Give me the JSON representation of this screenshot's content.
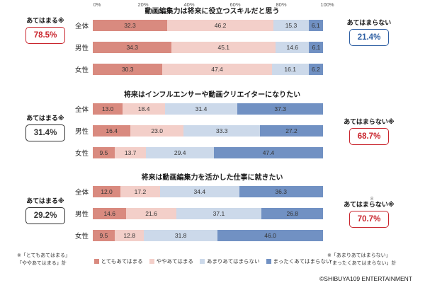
{
  "axis": {
    "ticks": [
      "0%",
      "20%",
      "40%",
      "60%",
      "80%",
      "100%"
    ]
  },
  "legend": [
    {
      "key": "totemo-atehamaru",
      "label": "とてもあてはまる",
      "color": "#d98a7f"
    },
    {
      "key": "yaya-atehamaru",
      "label": "ややあてはまる",
      "color": "#f3cfc9"
    },
    {
      "key": "amari-atehamaranai",
      "label": "あまりあてはまらない",
      "color": "#ccd9ea"
    },
    {
      "key": "mattaku-atehamaranai",
      "label": "まったくあてはまらない",
      "color": "#7191c3"
    }
  ],
  "chart_data": [
    {
      "type": "bar",
      "title": "動画編集力は将来に役立つスキルだと思う",
      "orientation": "horizontal-stacked",
      "xlim": [
        0,
        100
      ],
      "categories": [
        "全体",
        "男性",
        "女性"
      ],
      "rows": [
        {
          "label": "全体",
          "values": [
            32.3,
            46.2,
            15.3,
            6.1
          ]
        },
        {
          "label": "男性",
          "values": [
            34.3,
            45.1,
            14.6,
            6.1
          ]
        },
        {
          "label": "女性",
          "values": [
            30.3,
            47.4,
            16.1,
            6.2
          ]
        }
      ],
      "left_callout": {
        "label": "あてはまる※",
        "value": "78.5%",
        "color": "#c9252d"
      },
      "right_callout": {
        "label": "あてはまらない",
        "value": "21.4%",
        "color": "#2e5fa3"
      }
    },
    {
      "type": "bar",
      "title": "将来はインフルエンサーや動画クリエイターになりたい",
      "orientation": "horizontal-stacked",
      "xlim": [
        0,
        100
      ],
      "categories": [
        "全体",
        "男性",
        "女性"
      ],
      "rows": [
        {
          "label": "全体",
          "values": [
            13.0,
            18.4,
            31.4,
            37.3
          ]
        },
        {
          "label": "男性",
          "values": [
            16.4,
            23.0,
            33.3,
            27.2
          ]
        },
        {
          "label": "女性",
          "values": [
            9.5,
            13.7,
            29.4,
            47.4
          ]
        }
      ],
      "left_callout": {
        "label": "あてはまる※",
        "value": "31.4%",
        "color": "#333333"
      },
      "right_callout": {
        "label": "あてはまらない※",
        "value": "68.7%",
        "color": "#c9252d"
      }
    },
    {
      "type": "bar",
      "title": "将来は動画編集力を活かした仕事に就きたい",
      "orientation": "horizontal-stacked",
      "xlim": [
        0,
        100
      ],
      "categories": [
        "全体",
        "男性",
        "女性"
      ],
      "rows": [
        {
          "label": "全体",
          "values": [
            12.0,
            17.2,
            34.4,
            36.3
          ]
        },
        {
          "label": "男性",
          "values": [
            14.6,
            21.6,
            37.1,
            26.8
          ]
        },
        {
          "label": "女性",
          "values": [
            9.5,
            12.8,
            31.8,
            46.0
          ]
        }
      ],
      "left_callout": {
        "label": "あてはまる※",
        "value": "29.2%",
        "color": "#333333"
      },
      "right_callout": {
        "label": "あてはまらない※",
        "value": "70.7%",
        "color": "#c9252d"
      }
    }
  ],
  "footnotes": {
    "left": [
      "※「とてもあてはまる」",
      "「ややあてはまる」計"
    ],
    "right": [
      "※「あまりあてはまらない」",
      "「まったくあてはまらない」計"
    ]
  },
  "page_number": "8",
  "copyright": "©SHIBUYA109 ENTERTAINMENT"
}
